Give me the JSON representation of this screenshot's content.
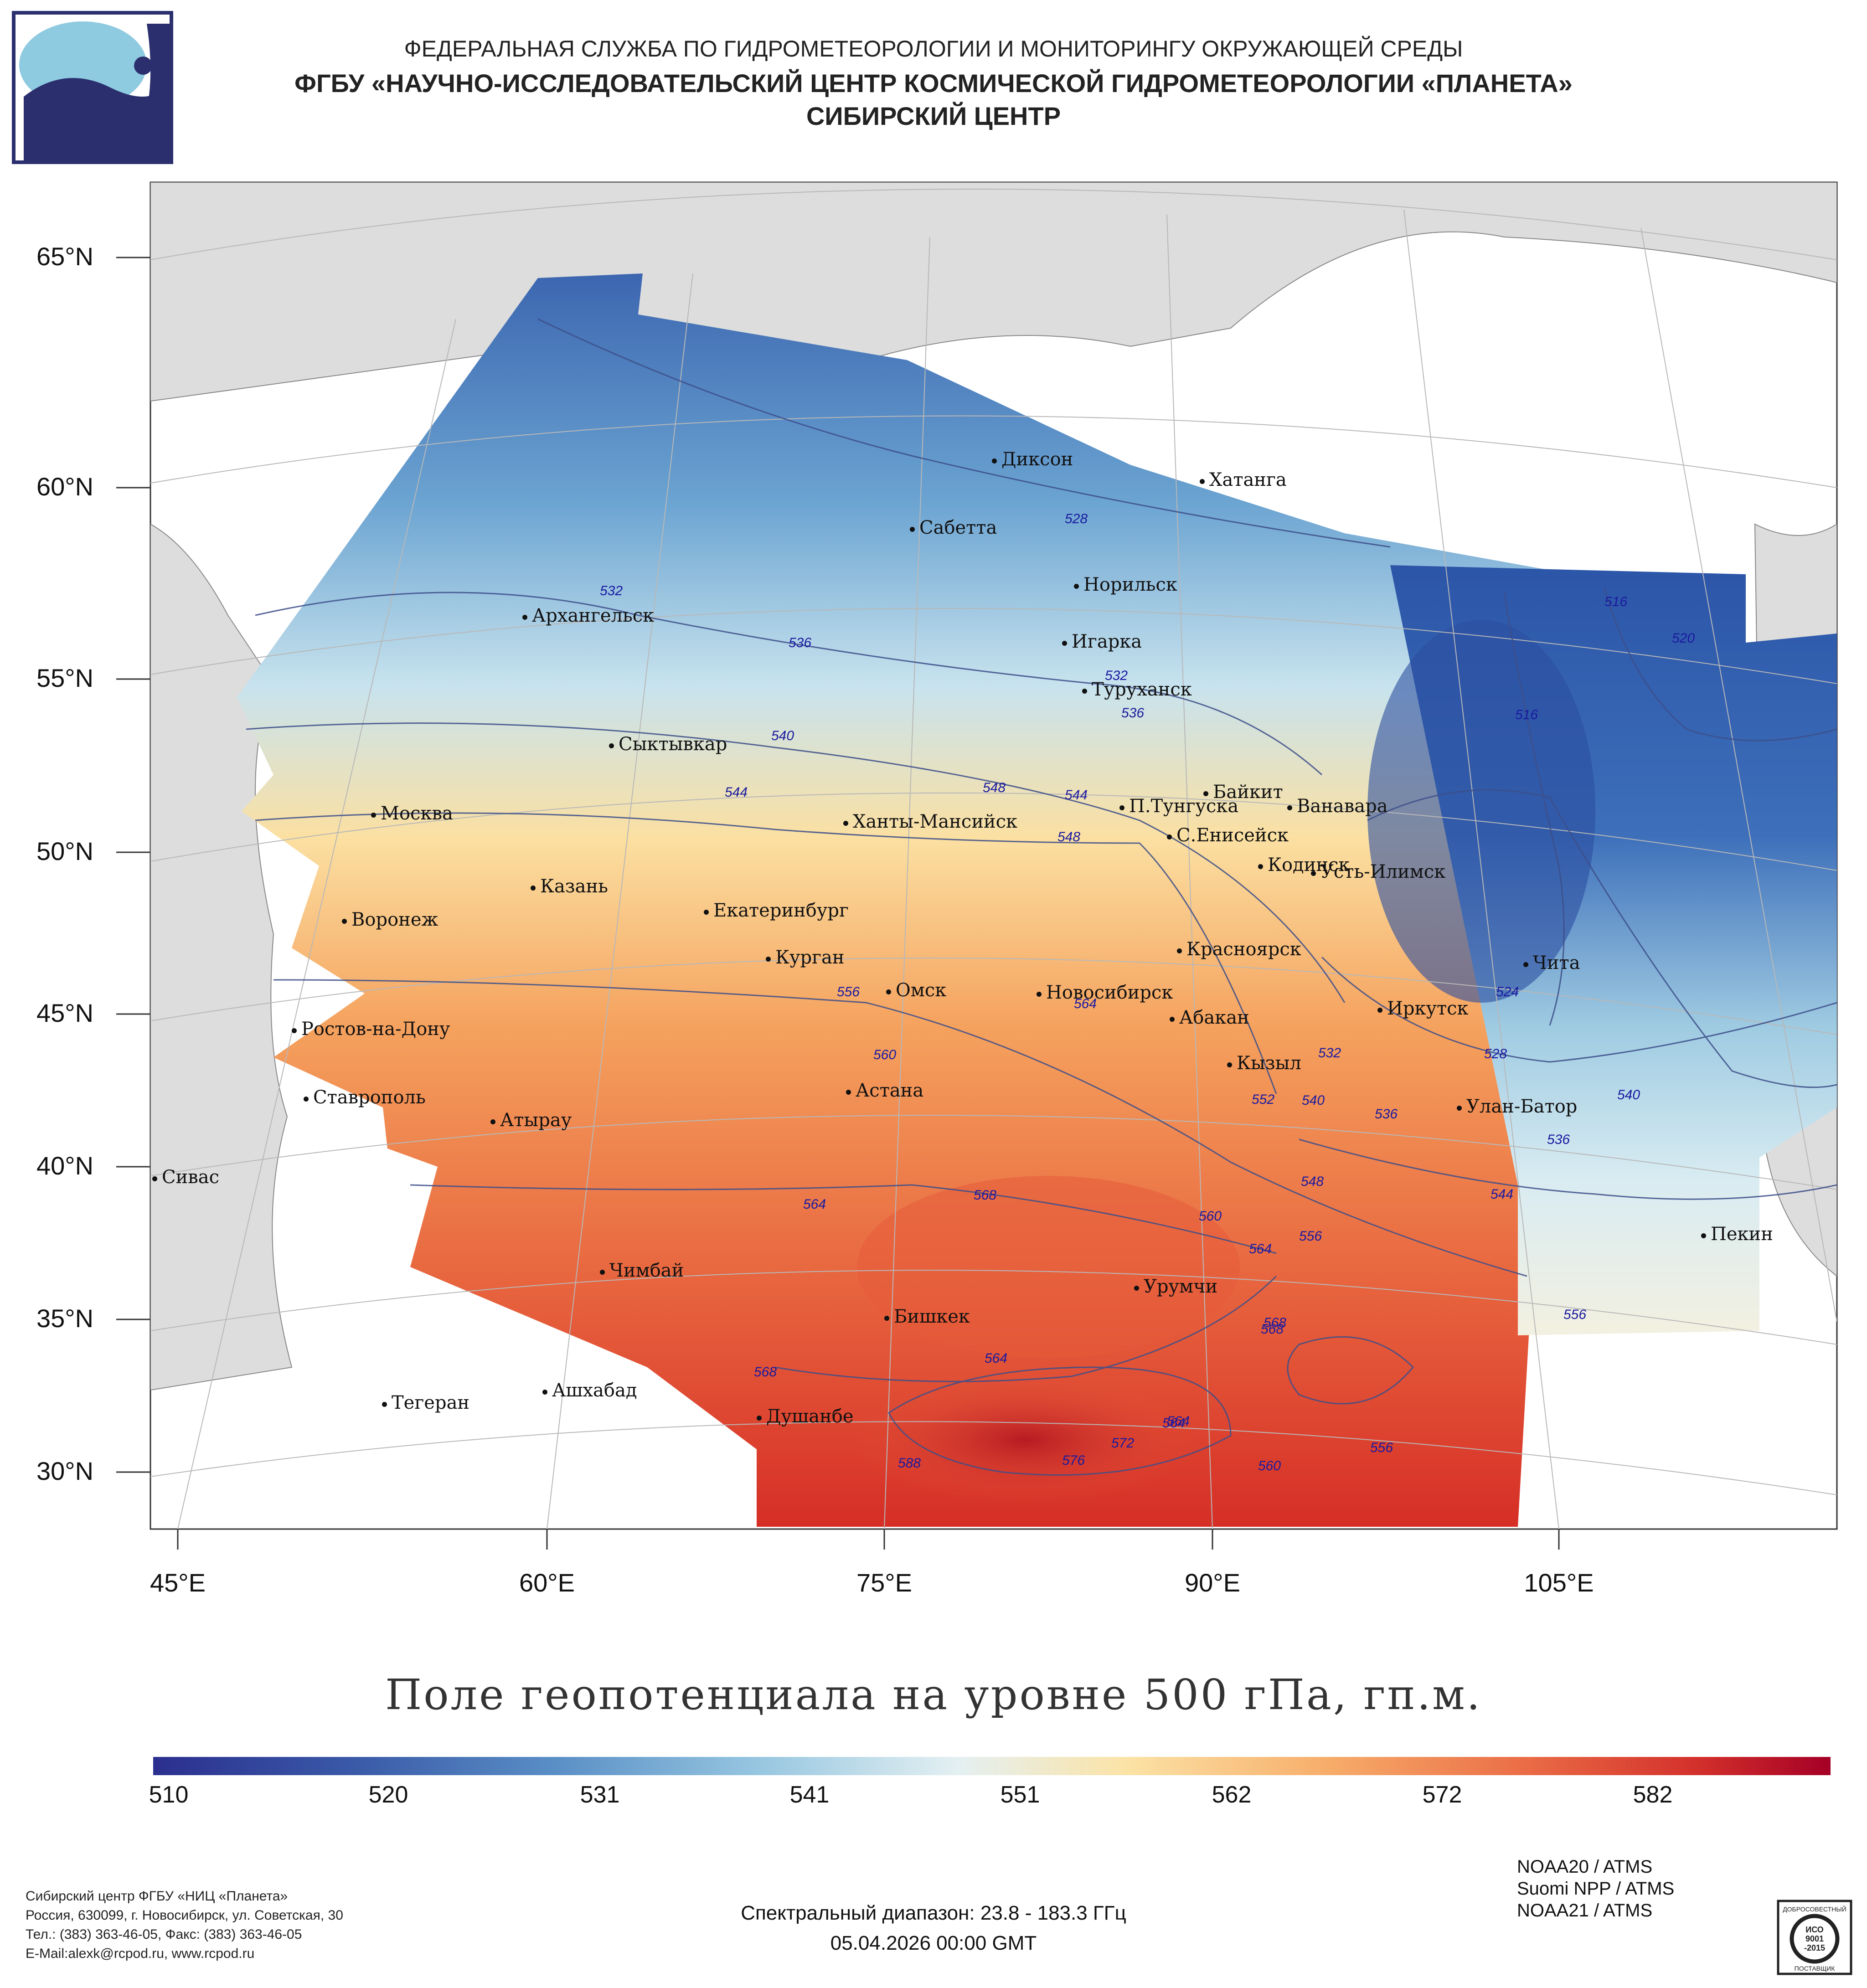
{
  "header": {
    "line1": "ФЕДЕРАЛЬНАЯ СЛУЖБА ПО ГИДРОМЕТЕОРОЛОГИИ И МОНИТОРИНГУ ОКРУЖАЮЩЕЙ СРЕДЫ",
    "line2": "ФГБУ «НАУЧНО-ИССЛЕДОВАТЕЛЬСКИЙ ЦЕНТР КОСМИЧЕСКОЙ ГИДРОМЕТЕОРОЛОГИИ «ПЛАНЕТА»",
    "line3": "СИБИРСКИЙ ЦЕНТР"
  },
  "axes": {
    "lat_labels": [
      "65°N",
      "60°N",
      "55°N",
      "50°N",
      "45°N",
      "40°N",
      "35°N",
      "30°N"
    ],
    "lon_labels": [
      "45°E",
      "60°E",
      "75°E",
      "90°E",
      "105°E"
    ]
  },
  "cities": [
    "Диксон",
    "Хатанга",
    "Сабетта",
    "Норильск",
    "Архангельск",
    "Игарка",
    "Туруханск",
    "Сыктывкар",
    "Байкит",
    "П.Тунгуска",
    "Ванавара",
    "Москва",
    "Ханты-Мансийск",
    "С.Енисейск",
    "Кодинск",
    "Усть-Илимск",
    "Казань",
    "Екатеринбург",
    "Воронеж",
    "Красноярск",
    "Курган",
    "Чита",
    "Омск",
    "Новосибирск",
    "Ростов-на-Дону",
    "Абакан",
    "Иркутск",
    "Кызыл",
    "Астана",
    "Ставрополь",
    "Улан-Батор",
    "Атырау",
    "Сивас",
    "Пекин",
    "Чимбай",
    "Урумчи",
    "Бишкек",
    "Тегеран",
    "Ашхабад",
    "Душанбе"
  ],
  "isolines": [
    "528",
    "532",
    "536",
    "532",
    "536",
    "540",
    "544",
    "548",
    "544",
    "548",
    "516",
    "520",
    "516",
    "524",
    "528",
    "532",
    "540",
    "536",
    "540",
    "536",
    "544",
    "548",
    "552",
    "556",
    "560",
    "564",
    "564",
    "568",
    "564",
    "560",
    "556",
    "564",
    "568",
    "564",
    "572",
    "576",
    "564",
    "560",
    "556",
    "556",
    "568",
    "568",
    "588"
  ],
  "map_title": "Поле геопотенциала на уровне 500 гПа, гп.м.",
  "scale": {
    "ticks": [
      "510",
      "520",
      "531",
      "541",
      "551",
      "562",
      "572",
      "582"
    ],
    "colors": [
      "#2b2f8f",
      "#5a8fc6",
      "#e4f0f2",
      "#fbe3a6",
      "#ea6b45",
      "#a50026"
    ]
  },
  "footer": {
    "org_lines": [
      "Сибирский центр ФГБУ «НИЦ «Планета»",
      "Россия, 630099, г. Новосибирск, ул. Советская, 30",
      "Тел.: (383) 363-46-05, Факс: (383) 363-46-05",
      "E-Mail:alexk@rcpod.ru, www.rcpod.ru"
    ],
    "spectral": "Спектральный диапазон: 23.8 - 183.3 ГГц",
    "datetime": "05.04.2026 00:00 GMT",
    "satellites": [
      "NOAA20 / ATMS",
      "Suomi NPP / ATMS",
      "NOAA21 / ATMS"
    ]
  },
  "badge": {
    "top": "ДОБРОСОВЕСТНЫЙ",
    "line1": "ИСО",
    "line2": "9001",
    "line3": "-2015",
    "bottom": "ПОСТАВЩИК"
  }
}
